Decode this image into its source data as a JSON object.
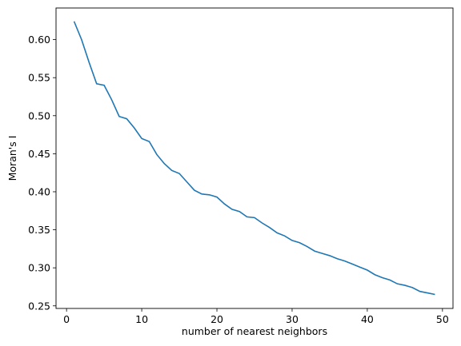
{
  "chart_data": {
    "type": "line",
    "xlabel": "number of nearest neighbors",
    "ylabel": "Moran's I",
    "x": [
      1,
      2,
      3,
      4,
      5,
      6,
      7,
      8,
      9,
      10,
      11,
      12,
      13,
      14,
      15,
      16,
      17,
      18,
      19,
      20,
      21,
      22,
      23,
      24,
      25,
      26,
      27,
      28,
      29,
      30,
      31,
      32,
      33,
      34,
      35,
      36,
      37,
      38,
      39,
      40,
      41,
      42,
      43,
      44,
      45,
      46,
      47,
      48,
      49
    ],
    "series": [
      {
        "name": "Moran's I",
        "color": "#1f77b4",
        "values": [
          0.624,
          0.6,
          0.57,
          0.542,
          0.54,
          0.521,
          0.499,
          0.496,
          0.484,
          0.47,
          0.466,
          0.449,
          0.437,
          0.428,
          0.424,
          0.413,
          0.402,
          0.397,
          0.396,
          0.393,
          0.384,
          0.377,
          0.374,
          0.367,
          0.366,
          0.359,
          0.353,
          0.346,
          0.342,
          0.336,
          0.333,
          0.328,
          0.322,
          0.319,
          0.316,
          0.312,
          0.309,
          0.305,
          0.301,
          0.297,
          0.291,
          0.287,
          0.284,
          0.279,
          0.277,
          0.274,
          0.269,
          0.267,
          0.265
        ]
      }
    ],
    "xlim": [
      -1.4,
      51.4
    ],
    "xticks": [
      0,
      10,
      20,
      30,
      40,
      50
    ],
    "ylim": [
      0.2466,
      0.6416
    ],
    "yticks": [
      0.25,
      {
        "value": 0.3,
        "label": "0.30"
      },
      0.35,
      {
        "value": 0.4,
        "label": "0.40"
      },
      0.45,
      {
        "value": 0.5,
        "label": "0.50"
      },
      0.55,
      {
        "value": 0.6,
        "label": "0.60"
      }
    ],
    "grid": false
  }
}
